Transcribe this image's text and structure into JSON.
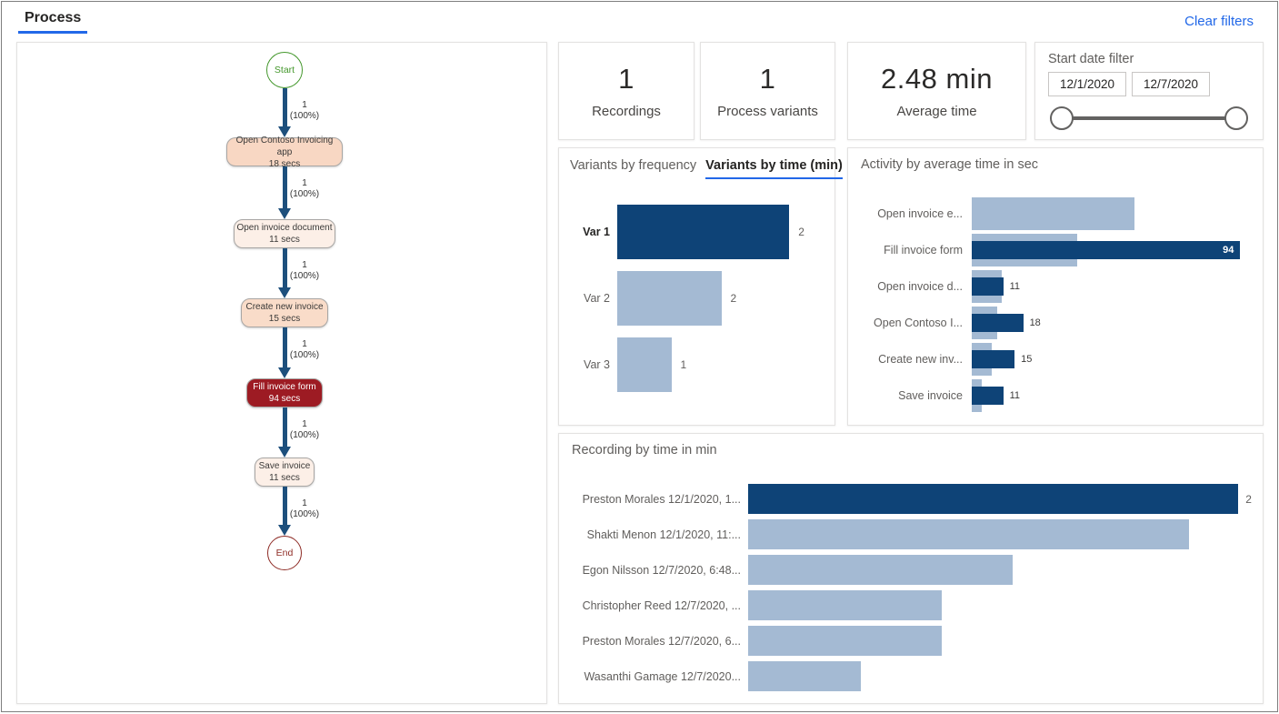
{
  "header": {
    "tab_label": "Process",
    "clear_filters_label": "Clear filters"
  },
  "colors": {
    "accent_blue": "#2268e8",
    "link_blue": "#2268e8",
    "bar_dark": "#0e4377",
    "bar_light": "#a4bad3",
    "arrow_blue": "#1d4f7c",
    "start_green": "#43972b",
    "end_red": "#8e2b25"
  },
  "summary_cards": [
    {
      "value": "1",
      "label": "Recordings"
    },
    {
      "value": "1",
      "label": "Process variants"
    },
    {
      "value": "2.48 min",
      "label": "Average time"
    }
  ],
  "date_filter": {
    "title": "Start date filter",
    "start_value": "12/1/2020",
    "end_value": "12/7/2020"
  },
  "process_map": {
    "start_label": "Start",
    "end_label": "End",
    "edge_label_count": "1",
    "edge_label_percent": "(100%)",
    "nodes": [
      {
        "label": "Open Contoso Invoicing app",
        "duration": "18 secs",
        "bg": "#f8d7c3",
        "text": "#3b3a39"
      },
      {
        "label": "Open invoice document",
        "duration": "11 secs",
        "bg": "#fcefe7",
        "text": "#3b3a39"
      },
      {
        "label": "Create new invoice",
        "duration": "15 secs",
        "bg": "#f9dcc9",
        "text": "#3b3a39"
      },
      {
        "label": "Fill invoice form",
        "duration": "94 secs",
        "bg": "#9d1b23",
        "text": "#ffffff"
      },
      {
        "label": "Save invoice",
        "duration": "11 secs",
        "bg": "#fcefe7",
        "text": "#3b3a39"
      }
    ]
  },
  "variants_panel": {
    "tabs": [
      {
        "label": "Variants by frequency",
        "active": false
      },
      {
        "label": "Variants by time (min)",
        "active": true
      }
    ]
  },
  "chart_data": [
    {
      "id": "variants_by_time",
      "type": "bar",
      "orientation": "horizontal",
      "title": "Variants by time (min)",
      "categories": [
        "Var 1",
        "Var 2",
        "Var 3"
      ],
      "values": [
        2.48,
        1.5,
        0.78
      ],
      "value_labels": [
        "2",
        "2",
        "1"
      ],
      "xlim": [
        0,
        3
      ],
      "highlight_index": 0,
      "highlight_color": "#0e4377",
      "base_color": "#a4bad3",
      "legend": "off",
      "grid": "off"
    },
    {
      "id": "activity_by_average_time",
      "type": "bar",
      "orientation": "horizontal",
      "title": "Activity by average time in sec",
      "categories": [
        "Open invoice e...",
        "Fill invoice form",
        "Open invoice d...",
        "Open Contoso I...",
        "Create new inv...",
        "Save invoice"
      ],
      "series": [
        {
          "name": "comparison",
          "color": "#a4bad3",
          "values": [
            57,
            37,
            10.5,
            9,
            7,
            3.5
          ]
        },
        {
          "name": "selected",
          "color": "#0e4377",
          "values": [
            null,
            94,
            11,
            18,
            15,
            11
          ]
        }
      ],
      "value_labels": [
        "",
        "94",
        "11",
        "18",
        "15",
        "11"
      ],
      "xlim": [
        0,
        98
      ],
      "legend": "off",
      "grid": "off"
    },
    {
      "id": "recording_by_time",
      "type": "bar",
      "orientation": "horizontal",
      "title": "Recording by time in min",
      "categories": [
        "Preston Morales 12/1/2020, 1...",
        "Shakti Menon 12/1/2020, 11:...",
        "Egon Nilsson 12/7/2020, 6:48...",
        "Christopher Reed 12/7/2020, ...",
        "Preston Morales 12/7/2020, 6...",
        "Wasanthi Gamage 12/7/2020..."
      ],
      "values": [
        2.0,
        1.8,
        1.08,
        0.79,
        0.79,
        0.46
      ],
      "value_labels": [
        "2",
        "",
        "",
        "",
        "",
        ""
      ],
      "xlim": [
        0,
        2.04
      ],
      "highlight_index": 0,
      "highlight_color": "#0e4377",
      "base_color": "#a4bad3",
      "legend": "off",
      "grid": "off"
    }
  ]
}
